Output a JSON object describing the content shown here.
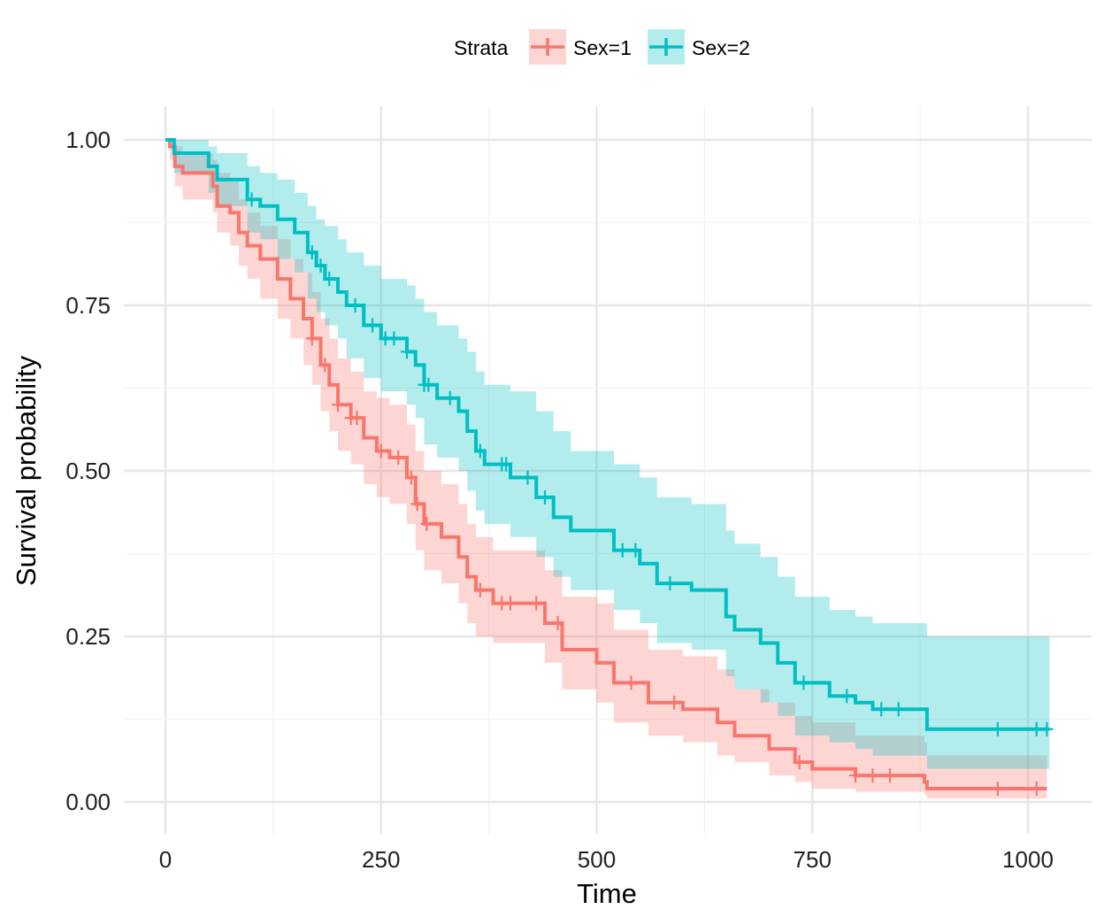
{
  "chart_data": {
    "type": "line",
    "subtype": "kaplan-meier step with confidence ribbons",
    "xlabel": "Time",
    "ylabel": "Survival probability",
    "xlim": [
      0,
      1025
    ],
    "ylim": [
      0,
      1
    ],
    "x_ticks": [
      "0",
      "250",
      "500",
      "750",
      "1000"
    ],
    "x_tick_values": [
      0,
      250,
      500,
      750,
      1000
    ],
    "y_ticks": [
      "0.00",
      "0.25",
      "0.50",
      "0.75",
      "1.00"
    ],
    "y_tick_values": [
      0,
      0.25,
      0.5,
      0.75,
      1
    ],
    "grid": true,
    "legend": {
      "title": "Strata",
      "placement": "top"
    },
    "series": [
      {
        "name": "Sex=1",
        "color": "#F8766D",
        "points_time_surv_lower_upper": [
          [
            0,
            1,
            1,
            1
          ],
          [
            5,
            0.99,
            0.97,
            1
          ],
          [
            11,
            0.96,
            0.93,
            0.99
          ],
          [
            20,
            0.95,
            0.91,
            0.98
          ],
          [
            55,
            0.93,
            0.89,
            0.97
          ],
          [
            60,
            0.9,
            0.86,
            0.95
          ],
          [
            75,
            0.89,
            0.84,
            0.94
          ],
          [
            85,
            0.86,
            0.81,
            0.91
          ],
          [
            95,
            0.84,
            0.79,
            0.89
          ],
          [
            110,
            0.82,
            0.76,
            0.87
          ],
          [
            130,
            0.79,
            0.73,
            0.85
          ],
          [
            145,
            0.76,
            0.7,
            0.82
          ],
          [
            160,
            0.73,
            0.66,
            0.8
          ],
          [
            170,
            0.7,
            0.63,
            0.77
          ],
          [
            180,
            0.66,
            0.59,
            0.73
          ],
          [
            190,
            0.63,
            0.56,
            0.7
          ],
          [
            200,
            0.6,
            0.53,
            0.67
          ],
          [
            215,
            0.58,
            0.51,
            0.65
          ],
          [
            230,
            0.55,
            0.48,
            0.62
          ],
          [
            245,
            0.53,
            0.46,
            0.61
          ],
          [
            260,
            0.52,
            0.45,
            0.6
          ],
          [
            280,
            0.49,
            0.42,
            0.57
          ],
          [
            290,
            0.45,
            0.38,
            0.53
          ],
          [
            300,
            0.42,
            0.35,
            0.5
          ],
          [
            320,
            0.4,
            0.33,
            0.48
          ],
          [
            340,
            0.37,
            0.3,
            0.45
          ],
          [
            350,
            0.34,
            0.27,
            0.42
          ],
          [
            360,
            0.32,
            0.25,
            0.4
          ],
          [
            380,
            0.3,
            0.24,
            0.38
          ],
          [
            440,
            0.27,
            0.21,
            0.35
          ],
          [
            460,
            0.23,
            0.17,
            0.31
          ],
          [
            500,
            0.21,
            0.15,
            0.3
          ],
          [
            520,
            0.18,
            0.12,
            0.26
          ],
          [
            560,
            0.15,
            0.1,
            0.23
          ],
          [
            600,
            0.14,
            0.09,
            0.22
          ],
          [
            640,
            0.12,
            0.07,
            0.2
          ],
          [
            660,
            0.1,
            0.06,
            0.17
          ],
          [
            700,
            0.08,
            0.04,
            0.15
          ],
          [
            730,
            0.06,
            0.03,
            0.13
          ],
          [
            750,
            0.05,
            0.02,
            0.12
          ],
          [
            800,
            0.04,
            0.015,
            0.1
          ],
          [
            880,
            0.03,
            0.01,
            0.09
          ],
          [
            883,
            0.02,
            0.005,
            0.07
          ],
          [
            1022,
            0.02,
            0.005,
            0.07
          ]
        ],
        "censor_times": [
          170,
          185,
          200,
          215,
          222,
          250,
          270,
          285,
          292,
          303,
          365,
          390,
          400,
          430,
          455,
          540,
          590,
          735,
          800,
          820,
          840,
          965,
          1010
        ]
      },
      {
        "name": "Sex=2",
        "color": "#00BFC4",
        "points_time_surv_lower_upper": [
          [
            0,
            1,
            1,
            1
          ],
          [
            10,
            0.98,
            0.95,
            1
          ],
          [
            50,
            0.96,
            0.92,
            0.99
          ],
          [
            60,
            0.94,
            0.9,
            0.98
          ],
          [
            95,
            0.91,
            0.86,
            0.96
          ],
          [
            110,
            0.9,
            0.85,
            0.95
          ],
          [
            130,
            0.88,
            0.82,
            0.94
          ],
          [
            150,
            0.86,
            0.8,
            0.92
          ],
          [
            165,
            0.83,
            0.76,
            0.9
          ],
          [
            175,
            0.81,
            0.74,
            0.88
          ],
          [
            185,
            0.79,
            0.72,
            0.87
          ],
          [
            200,
            0.77,
            0.7,
            0.85
          ],
          [
            210,
            0.75,
            0.67,
            0.83
          ],
          [
            230,
            0.72,
            0.64,
            0.81
          ],
          [
            250,
            0.7,
            0.62,
            0.79
          ],
          [
            280,
            0.68,
            0.6,
            0.78
          ],
          [
            290,
            0.66,
            0.58,
            0.76
          ],
          [
            300,
            0.63,
            0.54,
            0.74
          ],
          [
            315,
            0.61,
            0.52,
            0.72
          ],
          [
            340,
            0.59,
            0.5,
            0.7
          ],
          [
            350,
            0.56,
            0.47,
            0.68
          ],
          [
            360,
            0.53,
            0.44,
            0.65
          ],
          [
            370,
            0.51,
            0.42,
            0.63
          ],
          [
            400,
            0.49,
            0.4,
            0.62
          ],
          [
            430,
            0.46,
            0.37,
            0.59
          ],
          [
            450,
            0.43,
            0.34,
            0.56
          ],
          [
            470,
            0.41,
            0.32,
            0.53
          ],
          [
            520,
            0.38,
            0.29,
            0.51
          ],
          [
            550,
            0.36,
            0.27,
            0.49
          ],
          [
            570,
            0.33,
            0.24,
            0.46
          ],
          [
            610,
            0.32,
            0.23,
            0.45
          ],
          [
            650,
            0.28,
            0.19,
            0.41
          ],
          [
            660,
            0.26,
            0.17,
            0.39
          ],
          [
            690,
            0.24,
            0.15,
            0.37
          ],
          [
            710,
            0.21,
            0.13,
            0.34
          ],
          [
            730,
            0.18,
            0.1,
            0.31
          ],
          [
            770,
            0.16,
            0.09,
            0.29
          ],
          [
            800,
            0.15,
            0.08,
            0.28
          ],
          [
            820,
            0.14,
            0.07,
            0.27
          ],
          [
            883,
            0.11,
            0.05,
            0.25
          ],
          [
            1025,
            0.11,
            0.05,
            0.25
          ]
        ],
        "censor_times": [
          100,
          170,
          180,
          190,
          220,
          240,
          255,
          265,
          280,
          300,
          305,
          330,
          365,
          390,
          395,
          420,
          440,
          530,
          545,
          585,
          740,
          790,
          830,
          850,
          965,
          1010,
          1022
        ]
      }
    ]
  }
}
